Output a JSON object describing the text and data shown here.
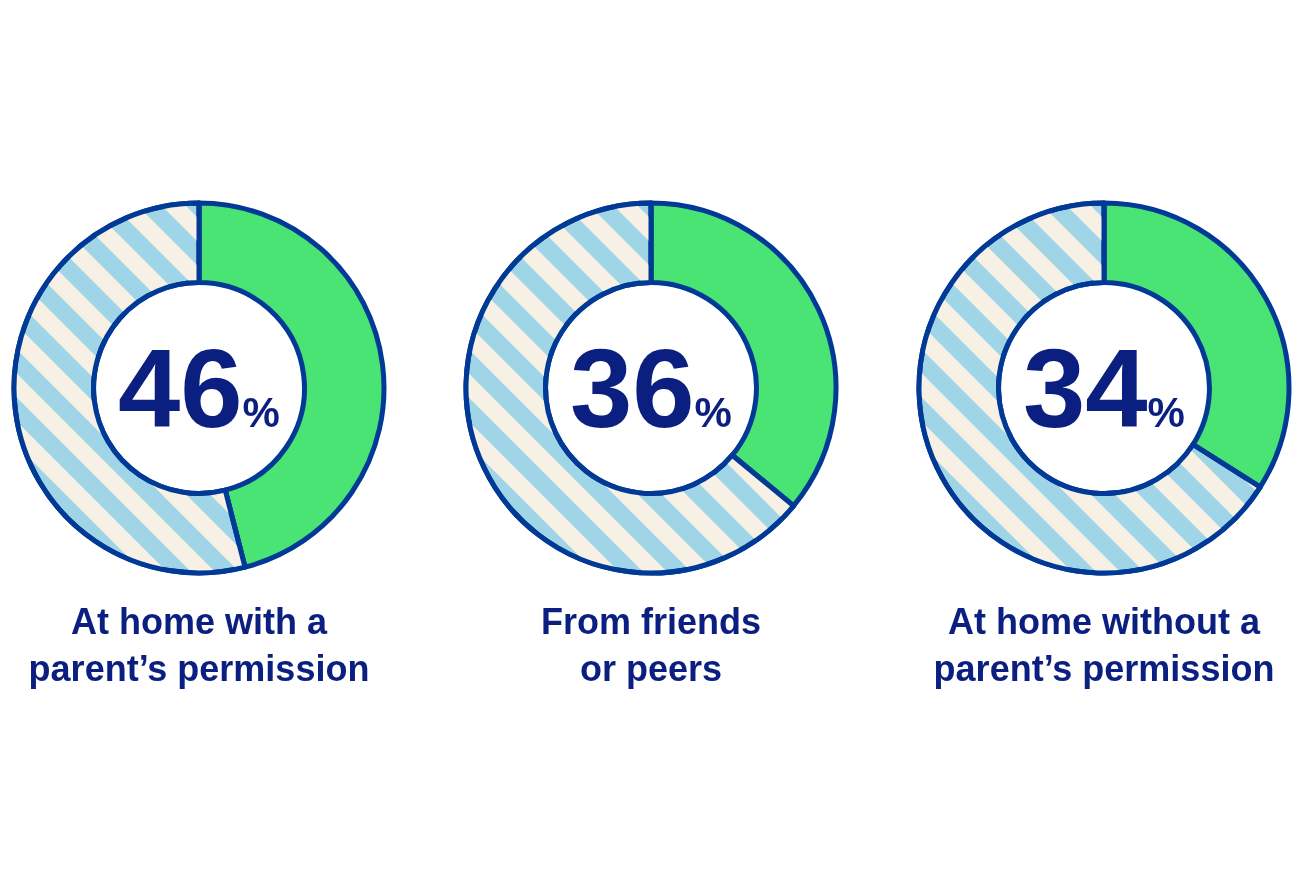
{
  "chart_data": [
    {
      "type": "donut",
      "title": "At home with a\nparent’s permission",
      "categories": [
        null,
        null
      ],
      "values": [
        46,
        54
      ],
      "colors": [
        "#49e474",
        "#9fd5e6"
      ],
      "annotations": [
        "46%"
      ]
    },
    {
      "type": "donut",
      "title": "From friends\nor peers",
      "categories": [
        null,
        null
      ],
      "values": [
        36,
        64
      ],
      "colors": [
        "#49e474",
        "#9fd5e6"
      ],
      "annotations": [
        "36%"
      ]
    },
    {
      "type": "donut",
      "title": "At home without a\nparent’s permission",
      "categories": [
        null,
        null
      ],
      "values": [
        34,
        66
      ],
      "colors": [
        "#49e474",
        "#9fd5e6"
      ],
      "annotations": [
        "34%"
      ]
    }
  ]
}
